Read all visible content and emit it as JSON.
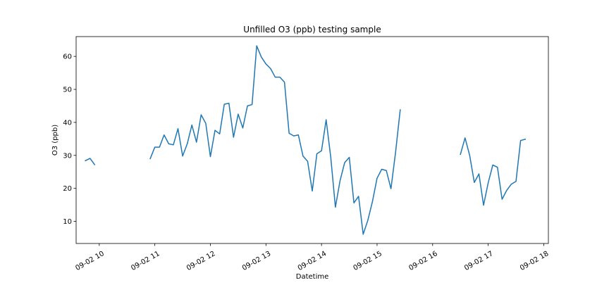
{
  "chart_data": {
    "type": "line",
    "title": "Unfilled O3 (ppb) testing sample",
    "xlabel": "Datetime",
    "ylabel": "O3 (ppb)",
    "xlim": [
      "09-02 09:35",
      "09-02 18:05"
    ],
    "ylim": [
      3.3,
      66
    ],
    "grid": false,
    "x_ticks": [
      {
        "label": "09-02 10",
        "value": "09-02 10:00"
      },
      {
        "label": "09-02 11",
        "value": "09-02 11:00"
      },
      {
        "label": "09-02 12",
        "value": "09-02 12:00"
      },
      {
        "label": "09-02 13",
        "value": "09-02 13:00"
      },
      {
        "label": "09-02 14",
        "value": "09-02 14:00"
      },
      {
        "label": "09-02 15",
        "value": "09-02 15:00"
      },
      {
        "label": "09-02 16",
        "value": "09-02 16:00"
      },
      {
        "label": "09-02 17",
        "value": "09-02 17:00"
      },
      {
        "label": "09-02 18",
        "value": "09-02 18:00"
      }
    ],
    "y_ticks": [
      10,
      20,
      30,
      40,
      50,
      60
    ],
    "series": [
      {
        "color": "#1f77b4",
        "segments": [
          {
            "x": [
              "09-02 09:45",
              "09-02 09:50",
              "09-02 09:55"
            ],
            "y": [
              28.4,
              29.1,
              27.2
            ]
          },
          {
            "x": [
              "09-02 10:55",
              "09-02 11:00",
              "09-02 11:05",
              "09-02 11:10",
              "09-02 11:15",
              "09-02 11:20",
              "09-02 11:25",
              "09-02 11:30",
              "09-02 11:35",
              "09-02 11:40",
              "09-02 11:45",
              "09-02 11:50",
              "09-02 11:55",
              "09-02 12:00",
              "09-02 12:05",
              "09-02 12:10",
              "09-02 12:15",
              "09-02 12:20",
              "09-02 12:25",
              "09-02 12:30",
              "09-02 12:35",
              "09-02 12:40",
              "09-02 12:45",
              "09-02 12:50",
              "09-02 12:55",
              "09-02 13:00",
              "09-02 13:05",
              "09-02 13:10",
              "09-02 13:15",
              "09-02 13:20",
              "09-02 13:25",
              "09-02 13:30",
              "09-02 13:35",
              "09-02 13:40",
              "09-02 13:45",
              "09-02 13:50",
              "09-02 13:55",
              "09-02 14:00",
              "09-02 14:05",
              "09-02 14:10",
              "09-02 14:15",
              "09-02 14:20",
              "09-02 14:25",
              "09-02 14:30",
              "09-02 14:35",
              "09-02 14:40",
              "09-02 14:45",
              "09-02 14:50",
              "09-02 14:55",
              "09-02 15:00",
              "09-02 15:05",
              "09-02 15:10",
              "09-02 15:15",
              "09-02 15:20",
              "09-02 15:25"
            ],
            "y": [
              29.0,
              32.5,
              32.5,
              36.2,
              33.5,
              33.2,
              38.1,
              29.8,
              33.5,
              39.2,
              34.0,
              42.3,
              39.7,
              29.6,
              37.6,
              36.5,
              45.5,
              45.8,
              35.5,
              42.5,
              38.3,
              45.0,
              45.4,
              63.2,
              59.8,
              57.7,
              56.3,
              53.7,
              53.7,
              52.2,
              36.7,
              35.9,
              36.2,
              29.8,
              28.2,
              19.2,
              30.5,
              31.4,
              40.8,
              29.4,
              14.3,
              22.3,
              27.8,
              29.4,
              15.6,
              17.6,
              6.1,
              10.3,
              16.0,
              23.1,
              25.8,
              25.4,
              19.9,
              31.0,
              43.8
            ]
          },
          {
            "x": [
              "09-02 16:30",
              "09-02 16:35",
              "09-02 16:40",
              "09-02 16:45",
              "09-02 16:50",
              "09-02 16:55",
              "09-02 17:00",
              "09-02 17:05",
              "09-02 17:10",
              "09-02 17:15",
              "09-02 17:20",
              "09-02 17:25",
              "09-02 17:30",
              "09-02 17:35",
              "09-02 17:40"
            ],
            "y": [
              30.3,
              35.3,
              30.0,
              21.8,
              24.4,
              14.9,
              21.7,
              27.1,
              26.4,
              16.7,
              19.4,
              21.3,
              22.1,
              34.5,
              34.9
            ]
          }
        ]
      }
    ]
  }
}
